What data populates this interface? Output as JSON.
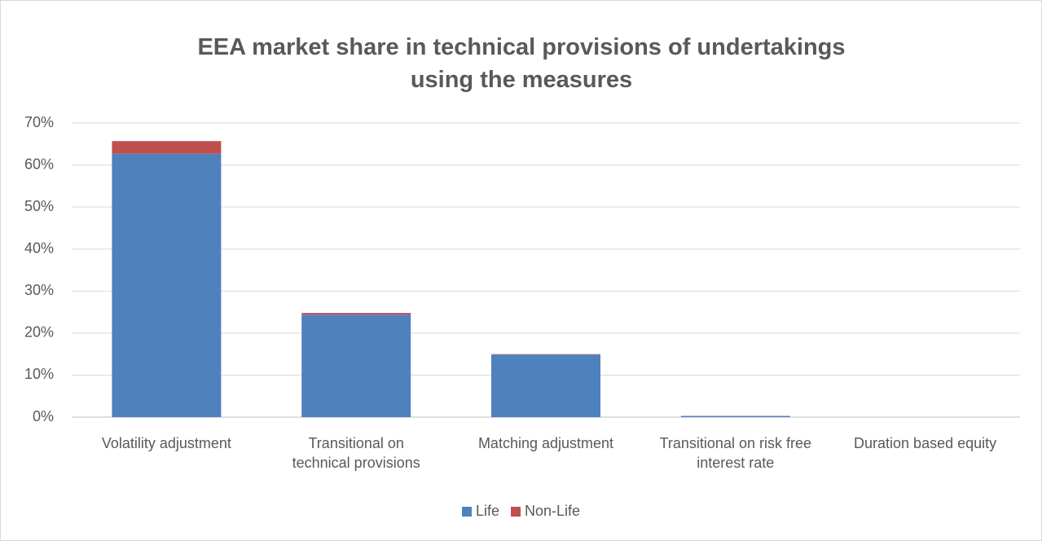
{
  "chart_data": {
    "type": "stacked_bar",
    "title": "EEA market share in technical provisions of undertakings using the measures",
    "categories": [
      "Volatility adjustment",
      "Transitional on technical provisions",
      "Matching adjustment",
      "Transitional on risk free interest rate",
      "Duration based equity"
    ],
    "series": [
      {
        "name": "Life",
        "color": "#4f81bd",
        "values": [
          62.7,
          24.4,
          14.9,
          0.3,
          0
        ]
      },
      {
        "name": "Non-Life",
        "color": "#c0504d",
        "values": [
          3.0,
          0.4,
          0.1,
          0,
          0
        ]
      }
    ],
    "ylim": [
      0,
      70
    ],
    "yticks": [
      {
        "value": 0,
        "label": "0%"
      },
      {
        "value": 10,
        "label": "10%"
      },
      {
        "value": 20,
        "label": "20%"
      },
      {
        "value": 30,
        "label": "30%"
      },
      {
        "value": 40,
        "label": "40%"
      },
      {
        "value": 50,
        "label": "50%"
      },
      {
        "value": 60,
        "label": "60%"
      },
      {
        "value": 70,
        "label": "70%"
      }
    ],
    "grid": true,
    "legend": "bottom"
  }
}
